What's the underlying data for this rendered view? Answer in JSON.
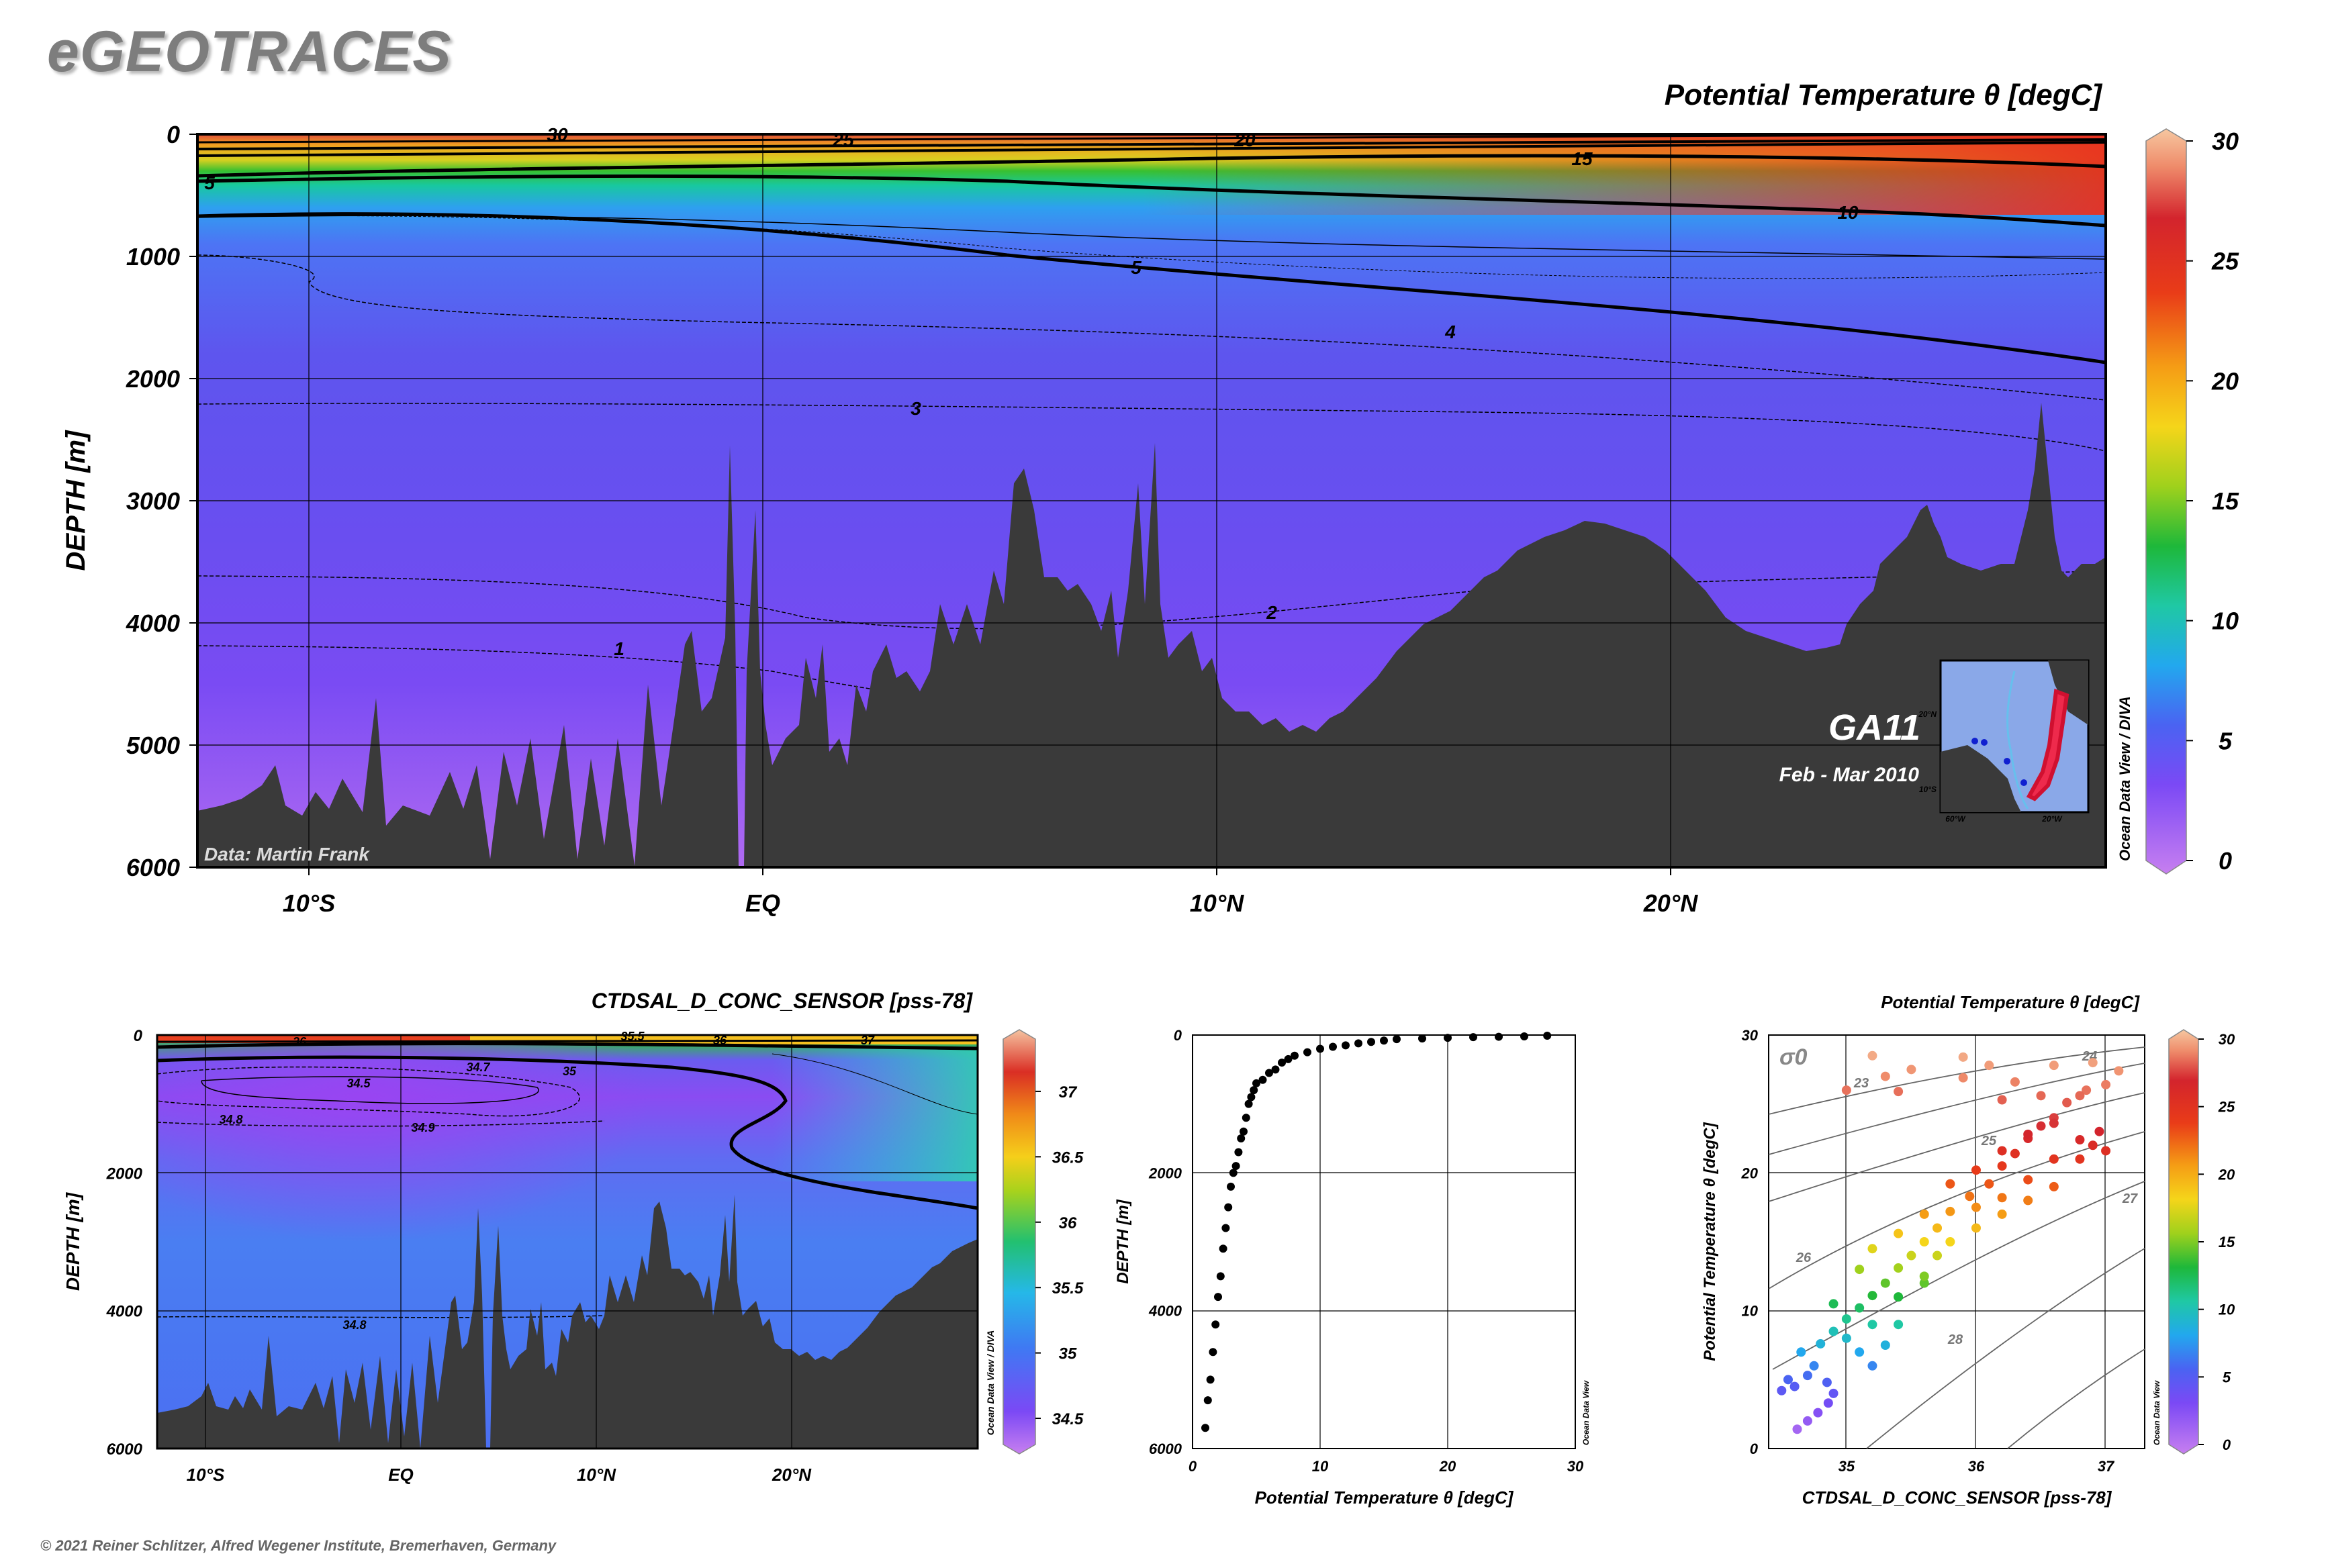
{
  "brand": "eGEOTRACES",
  "copyright": "© 2021 Reiner Schlitzer, Alfred Wegener Institute, Bremerhaven, Germany",
  "colors": {
    "land": "#3a3a3a",
    "frame": "#000000"
  },
  "chart_data": [
    {
      "type": "heatmap",
      "id": "main-section",
      "title": "Potential Temperature θ [degC]",
      "ylabel": "DEPTH [m]",
      "ylim": [
        6000,
        0
      ],
      "yticks": [
        "0",
        "1000",
        "2000",
        "3000",
        "4000",
        "5000",
        "6000"
      ],
      "xticks": [
        "10°S",
        "EQ",
        "10°N",
        "20°N"
      ],
      "colorbar": {
        "min": 0,
        "max": 30,
        "ticks": [
          "0",
          "5",
          "10",
          "15",
          "20",
          "25",
          "30"
        ]
      },
      "contour_labels": [
        "30",
        "25",
        "20",
        "15",
        "10",
        "5",
        "5",
        "4",
        "3",
        "2",
        "1"
      ],
      "credit": "Data: Martin Frank",
      "vertical_note": "Ocean Data View / DIVA",
      "inset": {
        "cruise": "GA11",
        "dates": "Feb - Mar 2010",
        "lat_labels": [
          "20°N",
          "10°S"
        ],
        "lon_labels": [
          "60°W",
          "20°W"
        ]
      }
    },
    {
      "type": "heatmap",
      "id": "salinity-section",
      "title": "CTDSAL_D_CONC_SENSOR [pss-78]",
      "ylabel": "DEPTH [m]",
      "ylim": [
        6000,
        0
      ],
      "yticks": [
        "0",
        "2000",
        "4000",
        "6000"
      ],
      "xticks": [
        "10°S",
        "EQ",
        "10°N",
        "20°N"
      ],
      "colorbar": {
        "min": 34.3,
        "max": 37.4,
        "ticks": [
          "34.5",
          "35",
          "35.5",
          "36",
          "36.5",
          "37"
        ]
      },
      "contour_labels": [
        "34.5",
        "34.7",
        "34.8",
        "34.9",
        "35",
        "36",
        "36",
        "37",
        "34.8",
        "35.5"
      ],
      "vertical_note": "Ocean Data View / DIVA"
    },
    {
      "type": "scatter",
      "id": "profile",
      "xlabel": "Potential Temperature θ [degC]",
      "ylabel": "DEPTH [m]",
      "xlim": [
        0,
        30
      ],
      "ylim": [
        6000,
        0
      ],
      "xticks": [
        "0",
        "10",
        "20",
        "30"
      ],
      "yticks": [
        "0",
        "2000",
        "4000",
        "6000"
      ],
      "vertical_note": "Ocean Data View",
      "points": [
        [
          27.8,
          10
        ],
        [
          26,
          20
        ],
        [
          24,
          25
        ],
        [
          22,
          30
        ],
        [
          20,
          40
        ],
        [
          18,
          50
        ],
        [
          16,
          60
        ],
        [
          15,
          80
        ],
        [
          14,
          100
        ],
        [
          13,
          120
        ],
        [
          12,
          150
        ],
        [
          11,
          170
        ],
        [
          10,
          200
        ],
        [
          9,
          250
        ],
        [
          8,
          300
        ],
        [
          7.5,
          350
        ],
        [
          7,
          400
        ],
        [
          6.5,
          500
        ],
        [
          6,
          550
        ],
        [
          5.5,
          650
        ],
        [
          5,
          700
        ],
        [
          4.8,
          800
        ],
        [
          4.6,
          900
        ],
        [
          4.4,
          1000
        ],
        [
          4.2,
          1200
        ],
        [
          4,
          1400
        ],
        [
          3.8,
          1500
        ],
        [
          3.6,
          1700
        ],
        [
          3.4,
          1900
        ],
        [
          3.2,
          2000
        ],
        [
          3,
          2200
        ],
        [
          2.8,
          2500
        ],
        [
          2.6,
          2800
        ],
        [
          2.4,
          3100
        ],
        [
          2.2,
          3500
        ],
        [
          2,
          3800
        ],
        [
          1.8,
          4200
        ],
        [
          1.6,
          4600
        ],
        [
          1.4,
          5000
        ],
        [
          1.2,
          5300
        ],
        [
          1,
          5700
        ]
      ]
    },
    {
      "type": "scatter",
      "id": "ts-diagram",
      "title": "Potential Temperature θ [degC]",
      "xlabel": "CTDSAL_D_CONC_SENSOR [pss-78]",
      "ylabel": "Potential Temperature θ [degC]",
      "xlim": [
        34.4,
        37.3
      ],
      "ylim": [
        0,
        30
      ],
      "xticks": [
        "35",
        "36",
        "37"
      ],
      "yticks": [
        "0",
        "10",
        "20",
        "30"
      ],
      "sigma_label": "σ0",
      "isopycnal_labels": [
        "23",
        "24",
        "25",
        "26",
        "27",
        "28"
      ],
      "colorbar": {
        "min": 0,
        "max": 30,
        "ticks": [
          "0",
          "5",
          "10",
          "15",
          "20",
          "25",
          "30"
        ]
      },
      "vertical_note": "Ocean Data View",
      "points": [
        [
          34.62,
          1.4
        ],
        [
          34.7,
          2
        ],
        [
          34.78,
          2.6
        ],
        [
          34.86,
          3.3
        ],
        [
          34.9,
          4
        ],
        [
          34.85,
          4.8
        ],
        [
          34.6,
          4.5
        ],
        [
          34.5,
          4.2
        ],
        [
          34.55,
          5
        ],
        [
          34.7,
          5.3
        ],
        [
          34.75,
          6
        ],
        [
          34.65,
          7
        ],
        [
          34.8,
          7.6
        ],
        [
          34.9,
          8.5
        ],
        [
          35,
          9.4
        ],
        [
          35.1,
          10.2
        ],
        [
          35.2,
          11.1
        ],
        [
          35.3,
          12
        ],
        [
          35.4,
          13.1
        ],
        [
          35.5,
          14
        ],
        [
          35.6,
          15
        ],
        [
          35.7,
          16
        ],
        [
          35.8,
          17.2
        ],
        [
          35.95,
          18.3
        ],
        [
          36.1,
          19.2
        ],
        [
          36.2,
          20.5
        ],
        [
          36.3,
          21.4
        ],
        [
          36.4,
          22.5
        ],
        [
          36.5,
          23.4
        ],
        [
          36.6,
          24
        ],
        [
          36.7,
          25.1
        ],
        [
          36.85,
          26
        ],
        [
          35.1,
          13
        ],
        [
          35.2,
          14.5
        ],
        [
          35.4,
          15.6
        ],
        [
          35.6,
          17
        ],
        [
          35.8,
          19.2
        ],
        [
          36,
          20.2
        ],
        [
          36.2,
          21.6
        ],
        [
          36.4,
          22.8
        ],
        [
          36.6,
          23.6
        ],
        [
          36.8,
          25.6
        ],
        [
          37,
          26.4
        ],
        [
          36.9,
          22
        ],
        [
          36.95,
          23
        ],
        [
          37,
          21.6
        ],
        [
          36.8,
          21
        ],
        [
          36.6,
          19
        ],
        [
          36.4,
          18
        ],
        [
          36.2,
          17
        ],
        [
          36,
          16
        ],
        [
          35.8,
          15
        ],
        [
          35.6,
          12
        ],
        [
          35.4,
          11
        ],
        [
          35.2,
          9
        ],
        [
          35,
          8
        ],
        [
          34.9,
          10.5
        ],
        [
          35.1,
          7
        ],
        [
          35.2,
          6
        ],
        [
          35.3,
          7.5
        ],
        [
          35.4,
          9
        ],
        [
          35.6,
          12.5
        ],
        [
          35.7,
          14
        ],
        [
          36.0,
          17.5
        ],
        [
          36.2,
          18.2
        ],
        [
          36.4,
          19.5
        ],
        [
          36.6,
          21
        ],
        [
          36.8,
          22.4
        ],
        [
          35.2,
          28.5
        ],
        [
          35.3,
          27
        ],
        [
          35.5,
          27.5
        ],
        [
          35.9,
          28.4
        ],
        [
          36.1,
          27.8
        ],
        [
          36.3,
          26.6
        ],
        [
          36.5,
          25.6
        ],
        [
          36.6,
          27.8
        ],
        [
          36.9,
          28
        ],
        [
          37.1,
          27.4
        ],
        [
          35.0,
          26
        ],
        [
          35.4,
          25.9
        ],
        [
          35.9,
          26.9
        ],
        [
          36.2,
          25.3
        ]
      ]
    }
  ]
}
